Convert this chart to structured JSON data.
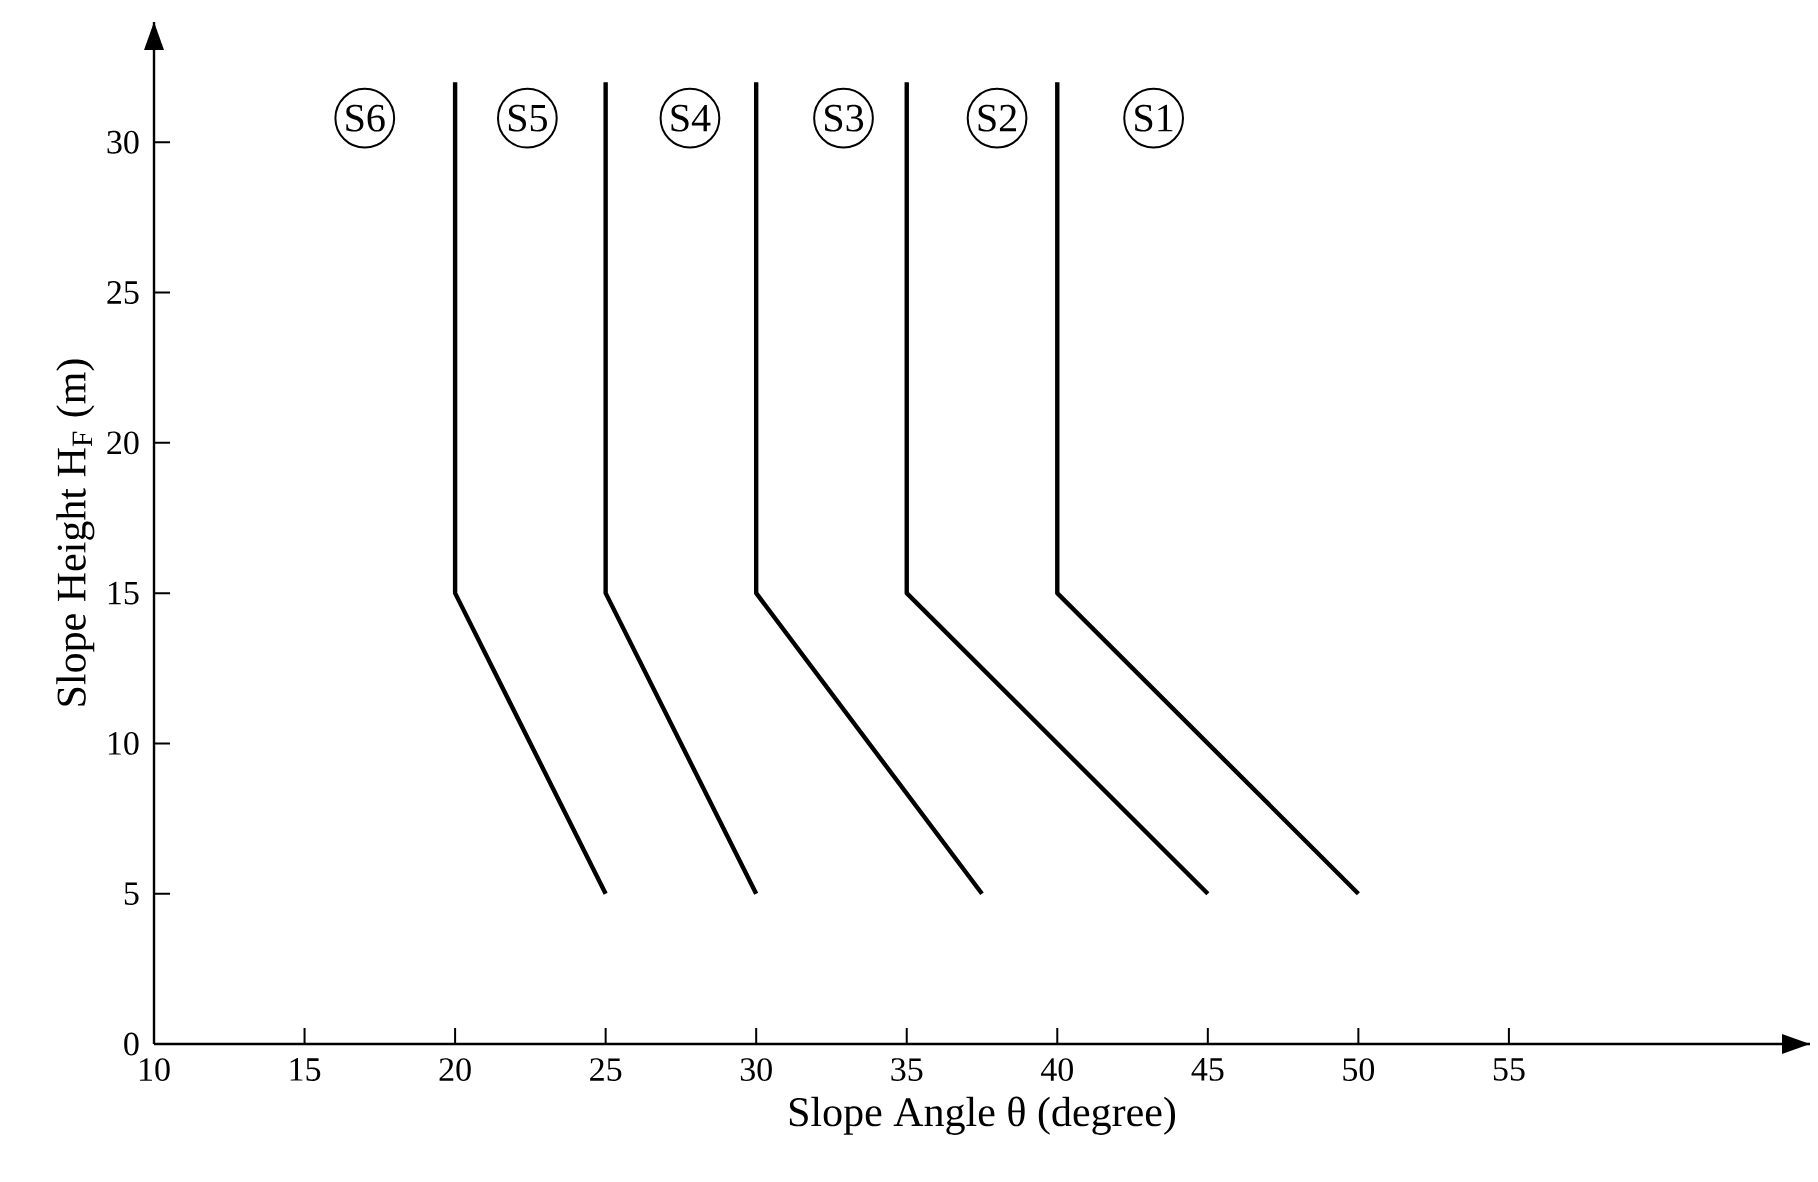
{
  "chart_data": {
    "type": "line",
    "xlabel": "Slope Angle θ (degree)",
    "ylabel": "Slope Height H$_{F}$ (m)",
    "xlim": [
      10,
      65
    ],
    "ylim": [
      0,
      34
    ],
    "xticks": [
      10,
      15,
      20,
      25,
      30,
      35,
      40,
      45,
      50,
      55
    ],
    "yticks": [
      0,
      5,
      10,
      15,
      20,
      25,
      30
    ],
    "series": [
      {
        "color": "#000000",
        "x": [
          50,
          40,
          40
        ],
        "values": [
          5,
          15,
          32
        ]
      },
      {
        "color": "#000000",
        "x": [
          45,
          35,
          35
        ],
        "values": [
          5,
          15,
          32
        ]
      },
      {
        "color": "#000000",
        "x": [
          37.5,
          30,
          30
        ],
        "values": [
          5,
          15,
          32
        ]
      },
      {
        "color": "#000000",
        "x": [
          30,
          25,
          25
        ],
        "values": [
          5,
          15,
          32
        ]
      },
      {
        "color": "#000000",
        "x": [
          25,
          20,
          20
        ],
        "values": [
          5,
          15,
          32
        ]
      }
    ],
    "annotations": [
      {
        "text": "S6",
        "x": 17.0,
        "y": 30.8
      },
      {
        "text": "S5",
        "x": 22.4,
        "y": 30.8
      },
      {
        "text": "S4",
        "x": 27.8,
        "y": 30.8
      },
      {
        "text": "S3",
        "x": 32.9,
        "y": 30.8
      },
      {
        "text": "S2",
        "x": 38.0,
        "y": 30.8
      },
      {
        "text": "S1",
        "x": 43.2,
        "y": 30.8
      }
    ]
  }
}
